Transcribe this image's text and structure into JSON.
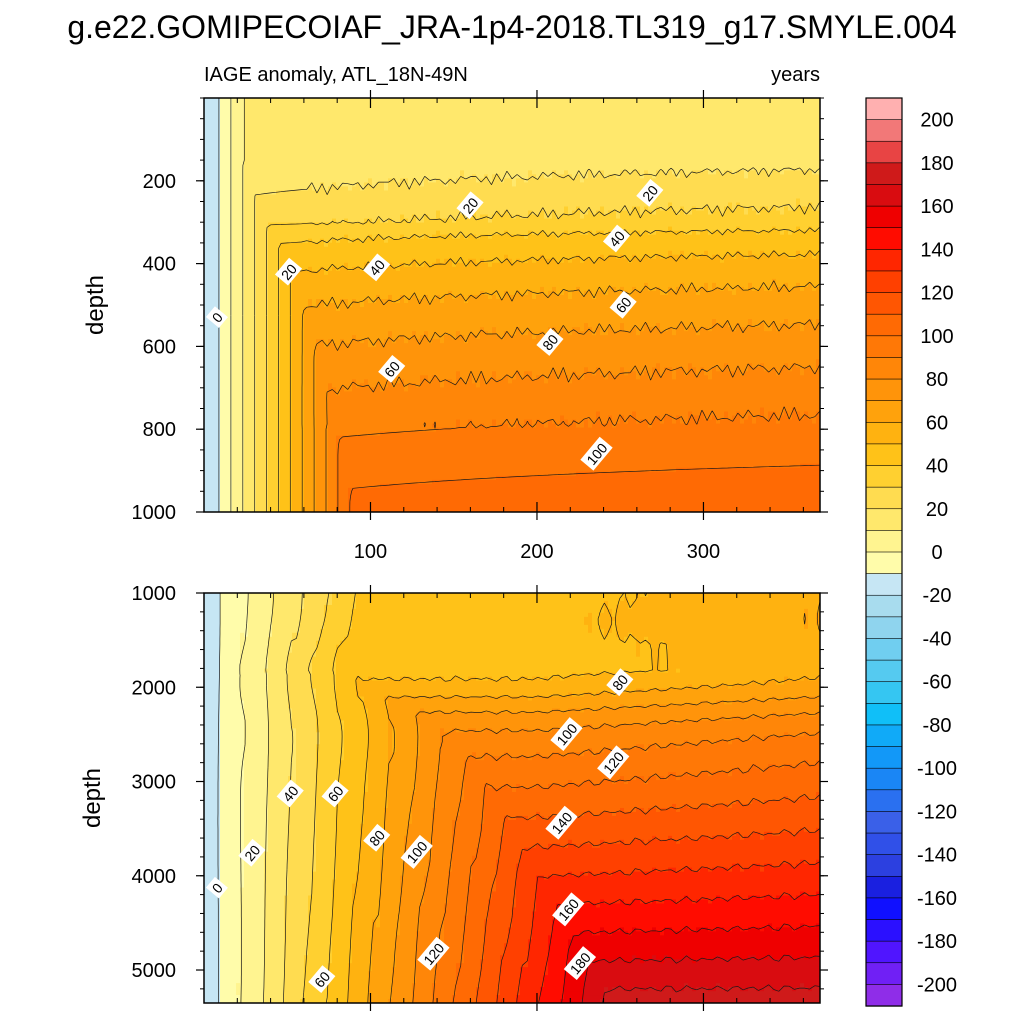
{
  "title": "g.e22.GOMIPECOIAF_JRA-1p4-2018.TL319_g17.SMYLE.004",
  "colorbar": {
    "levels": [
      -200,
      -190,
      -180,
      -170,
      -160,
      -150,
      -140,
      -130,
      -120,
      -110,
      -100,
      -90,
      -80,
      -70,
      -60,
      -50,
      -40,
      -30,
      -20,
      -10,
      0,
      10,
      20,
      30,
      40,
      50,
      60,
      70,
      80,
      90,
      100,
      110,
      120,
      130,
      140,
      150,
      160,
      170,
      180,
      190,
      200
    ],
    "labels": [
      "200",
      "180",
      "160",
      "140",
      "120",
      "100",
      "80",
      "60",
      "40",
      "20",
      "0",
      "-20",
      "-40",
      "-60",
      "-80",
      "-100",
      "-120",
      "-140",
      "-160",
      "-180",
      "-200"
    ],
    "colors": [
      "#8f2de8",
      "#7020f5",
      "#5015ff",
      "#2b10ff",
      "#1010ff",
      "#1a20e0",
      "#2c40e0",
      "#3050e8",
      "#3a60e8",
      "#2a70f0",
      "#1a86f5",
      "#1298f8",
      "#10aaf8",
      "#10bff8",
      "#35c6f2",
      "#55caf0",
      "#70cef0",
      "#8fd4ee",
      "#a8dcee",
      "#c6e6f4",
      "#fffcaa",
      "#fff490",
      "#ffe86c",
      "#ffdc50",
      "#ffd030",
      "#ffc218",
      "#ffb210",
      "#ffa20c",
      "#ff940a",
      "#ff8608",
      "#ff7806",
      "#ff6a04",
      "#ff5602",
      "#ff4000",
      "#ff2600",
      "#ff0c00",
      "#ef0000",
      "#d90c10",
      "#cf1a1a",
      "#e84444",
      "#f27878",
      "#ffb0b0"
    ]
  },
  "chart_data": [
    {
      "type": "contour",
      "title": "IAGE anomaly, ATL_18N-49N",
      "units": "years",
      "xlabel": "",
      "ylabel": "depth",
      "xlim": [
        0,
        370
      ],
      "ylim": [
        0,
        1000
      ],
      "y_inverted": true,
      "xticks": [
        100,
        200,
        300
      ],
      "xtick_labels": [
        "100",
        "200",
        "300"
      ],
      "yticks": [
        200,
        400,
        600,
        800,
        1000
      ],
      "ytick_labels": [
        "200",
        "400",
        "600",
        "800",
        "1000"
      ],
      "contour_interval": 10,
      "contour_labels": [
        {
          "text": "0",
          "x": 8,
          "y": 530
        },
        {
          "text": "20",
          "x": 51,
          "y": 420
        },
        {
          "text": "20",
          "x": 160,
          "y": 260
        },
        {
          "text": "20",
          "x": 268,
          "y": 230
        },
        {
          "text": "40",
          "x": 104,
          "y": 410
        },
        {
          "text": "40",
          "x": 248,
          "y": 340
        },
        {
          "text": "60",
          "x": 113,
          "y": 655
        },
        {
          "text": "60",
          "x": 252,
          "y": 500
        },
        {
          "text": "80",
          "x": 208,
          "y": 590
        },
        {
          "text": "100",
          "x": 236,
          "y": 860
        }
      ]
    },
    {
      "type": "contour",
      "title": "",
      "units": "",
      "xlabel": "",
      "ylabel": "depth",
      "xlim": [
        0,
        370
      ],
      "ylim": [
        1000,
        5350
      ],
      "y_inverted": true,
      "xticks": [
        100,
        200,
        300
      ],
      "yticks": [
        1000,
        2000,
        3000,
        4000,
        5000
      ],
      "ytick_labels": [
        "1000",
        "2000",
        "3000",
        "4000",
        "5000"
      ],
      "contour_interval": 10,
      "contour_labels": [
        {
          "text": "0",
          "x": 8,
          "y": 4130
        },
        {
          "text": "20",
          "x": 29,
          "y": 3760
        },
        {
          "text": "40",
          "x": 52,
          "y": 3130
        },
        {
          "text": "60",
          "x": 79,
          "y": 3130
        },
        {
          "text": "60",
          "x": 71,
          "y": 5100
        },
        {
          "text": "80",
          "x": 104,
          "y": 3600
        },
        {
          "text": "100",
          "x": 128,
          "y": 3750
        },
        {
          "text": "120",
          "x": 138,
          "y": 4830
        },
        {
          "text": "80",
          "x": 250,
          "y": 1950
        },
        {
          "text": "100",
          "x": 218,
          "y": 2500
        },
        {
          "text": "120",
          "x": 246,
          "y": 2800
        },
        {
          "text": "140",
          "x": 215,
          "y": 3440
        },
        {
          "text": "160",
          "x": 219,
          "y": 4360
        },
        {
          "text": "180",
          "x": 226,
          "y": 4930
        }
      ]
    }
  ]
}
